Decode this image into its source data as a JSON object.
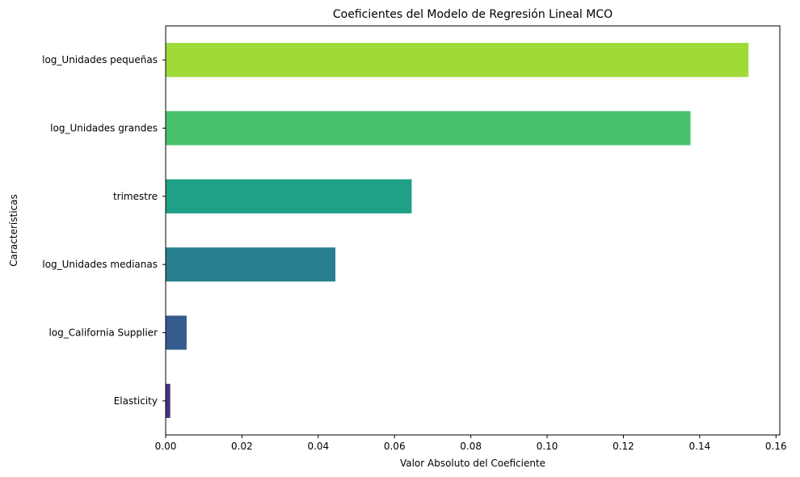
{
  "chart_data": {
    "type": "bar",
    "orientation": "horizontal",
    "title": "Coeficientes del Modelo de Regresión Lineal MCO",
    "xlabel": "Valor Absoluto del Coeficiente",
    "ylabel": "Características",
    "xlim": [
      0,
      0.161
    ],
    "xticks": [
      0.0,
      0.02,
      0.04,
      0.06,
      0.08,
      0.1,
      0.12,
      0.14,
      0.16
    ],
    "xtick_labels": [
      "0.00",
      "0.02",
      "0.04",
      "0.06",
      "0.08",
      "0.10",
      "0.12",
      "0.14",
      "0.16"
    ],
    "grid": false,
    "categories": [
      "log_Unidades pequeñas",
      "log_Unidades grandes",
      "trimestre",
      "log_Unidades medianas",
      "log_California Supplier",
      "Elasticity"
    ],
    "values": [
      0.1528,
      0.1376,
      0.0645,
      0.0445,
      0.0055,
      0.0012
    ],
    "colors": [
      "#a0da39",
      "#4ac16d",
      "#1fa187",
      "#277f8e",
      "#365c8d",
      "#46327e"
    ]
  }
}
